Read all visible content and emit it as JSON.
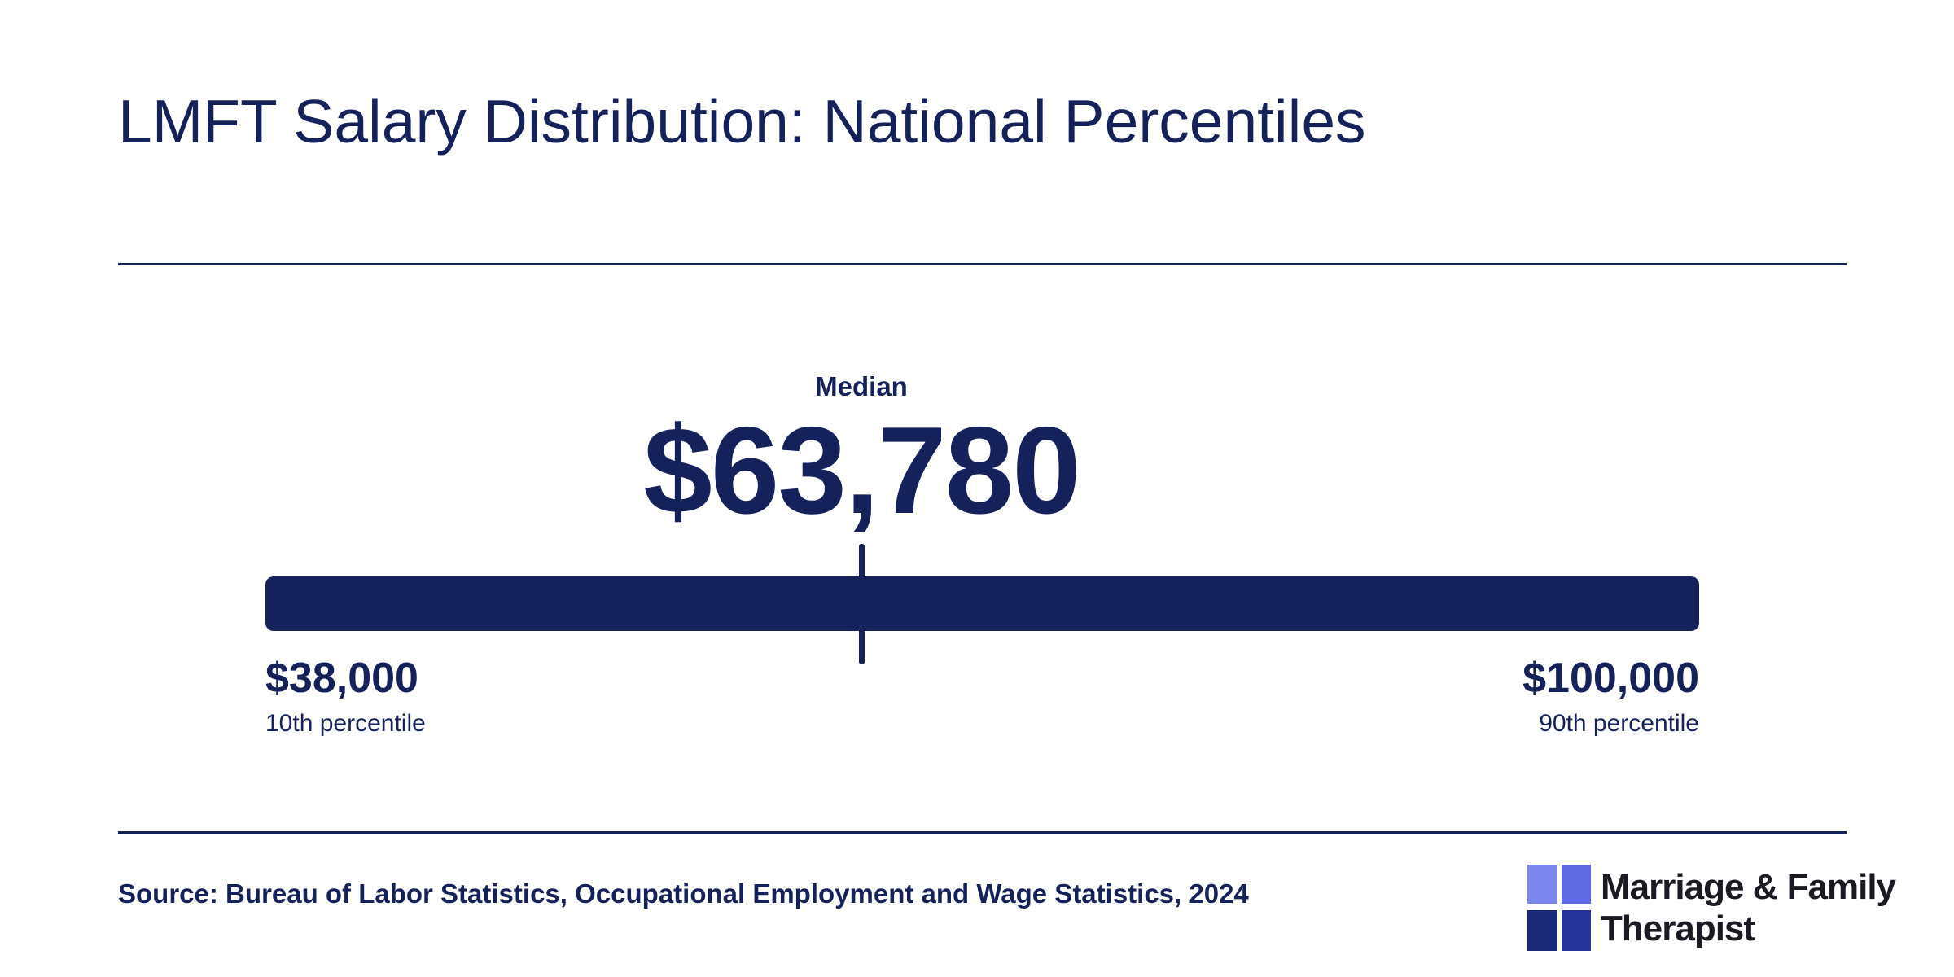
{
  "header": {
    "title": "LMFT Salary Distribution: National Percentiles"
  },
  "chart_data": {
    "type": "range",
    "title": "LMFT Salary Distribution: National Percentiles",
    "median": {
      "label": "Median",
      "value": 63780,
      "display": "$63,780"
    },
    "min": {
      "value": 38000,
      "display": "$38,000",
      "label": "10th percentile"
    },
    "max": {
      "value": 100000,
      "display": "$100,000",
      "label": "90th percentile"
    }
  },
  "footer": {
    "source": "Source: Bureau of Labor Statistics, Occupational Employment and Wage Statistics, 2024"
  },
  "logo": {
    "line1": "Marriage & Family",
    "line2": "Therapist"
  },
  "colors": {
    "primary": "#15215a",
    "logo_light": "#7b86ee",
    "logo_dark": "#1b2a78"
  }
}
